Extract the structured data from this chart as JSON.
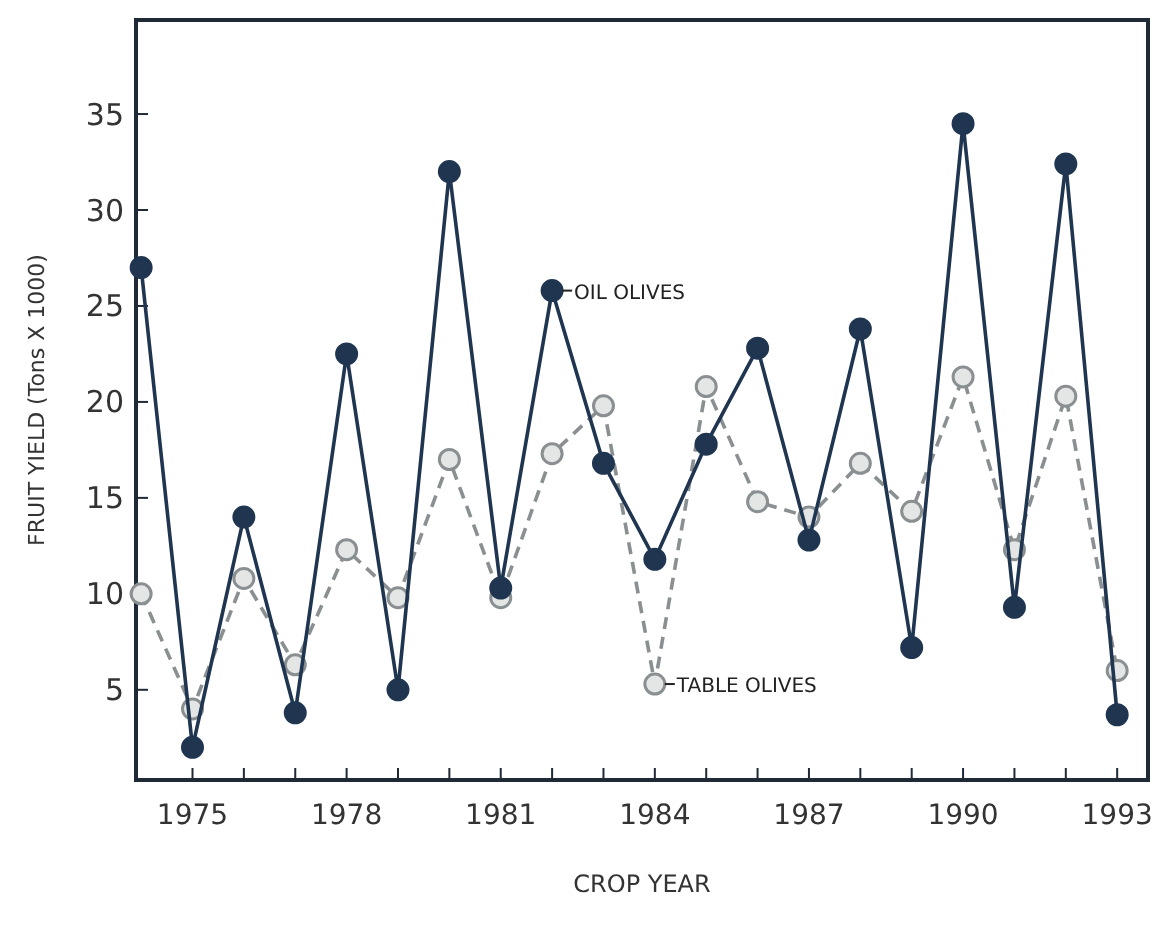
{
  "chart_data": {
    "type": "line",
    "xlabel": "CROP YEAR",
    "ylabel": "FRUIT YIELD (Tons X 1000)",
    "x": [
      1974,
      1975,
      1976,
      1977,
      1978,
      1979,
      1980,
      1981,
      1982,
      1983,
      1984,
      1985,
      1986,
      1987,
      1988,
      1989,
      1990,
      1991,
      1992,
      1993
    ],
    "series": [
      {
        "name": "OIL OLIVES",
        "color": "#1f3550",
        "line_style": "solid",
        "values": [
          27,
          2,
          14,
          3.8,
          22.5,
          5,
          32,
          10.3,
          25.8,
          16.8,
          11.8,
          17.8,
          22.8,
          12.8,
          23.8,
          7.2,
          34.5,
          9.3,
          32.4,
          3.7
        ]
      },
      {
        "name": "TABLE OLIVES",
        "color": "#8a8f92",
        "line_style": "dashed",
        "values": [
          10,
          4,
          10.8,
          6.3,
          12.3,
          9.8,
          17,
          9.8,
          17.3,
          19.8,
          5.3,
          20.8,
          14.8,
          14,
          16.8,
          14.3,
          21.3,
          12.3,
          20.3,
          6
        ]
      }
    ],
    "xlim": [
      1973.9,
      1993.6
    ],
    "xticks": [
      {
        "value": 1975,
        "label": "1975"
      },
      {
        "value": 1976,
        "label": null
      },
      {
        "value": 1977,
        "label": null
      },
      {
        "value": 1978,
        "label": "1978"
      },
      {
        "value": 1979,
        "label": null
      },
      {
        "value": 1980,
        "label": null
      },
      {
        "value": 1981,
        "label": "1981"
      },
      {
        "value": 1982,
        "label": null
      },
      {
        "value": 1983,
        "label": null
      },
      {
        "value": 1984,
        "label": "1984"
      },
      {
        "value": 1985,
        "label": null
      },
      {
        "value": 1986,
        "label": null
      },
      {
        "value": 1987,
        "label": "1987"
      },
      {
        "value": 1988,
        "label": null
      },
      {
        "value": 1989,
        "label": null
      },
      {
        "value": 1990,
        "label": "1990"
      },
      {
        "value": 1991,
        "label": null
      },
      {
        "value": 1992,
        "label": null
      },
      {
        "value": 1993,
        "label": "1993"
      }
    ],
    "ylim": [
      0.3,
      39.9
    ],
    "yticks": [
      5,
      10,
      15,
      20,
      25,
      30,
      35
    ],
    "marker": "circle",
    "grid": false
  }
}
